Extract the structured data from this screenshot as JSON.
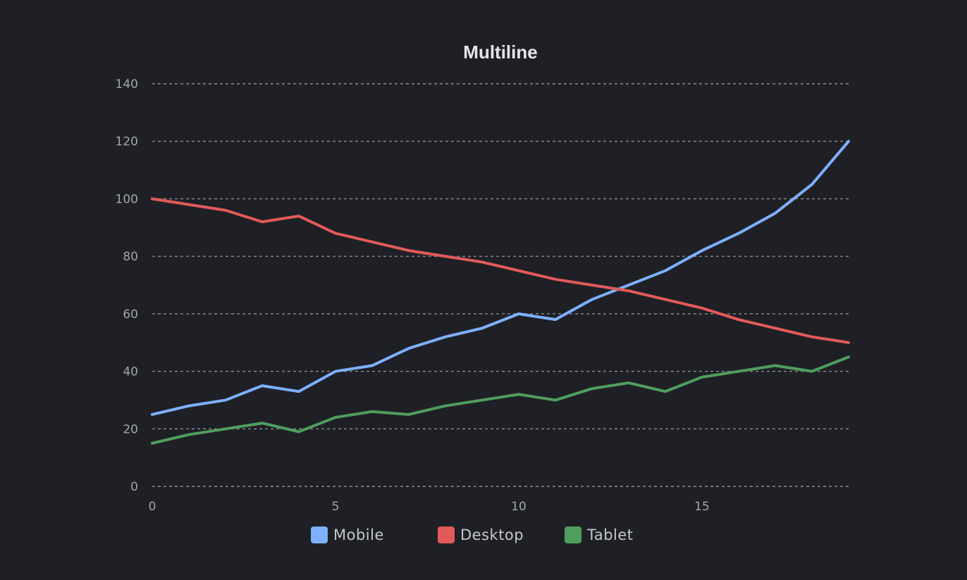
{
  "chart_data": {
    "type": "line",
    "title": "Multiline",
    "xlabel": "",
    "ylabel": "",
    "x": [
      0,
      1,
      2,
      3,
      4,
      5,
      6,
      7,
      8,
      9,
      10,
      11,
      12,
      13,
      14,
      15,
      16,
      17,
      18,
      19
    ],
    "xlim": [
      0,
      19
    ],
    "ylim": [
      0,
      140
    ],
    "xticks": [
      0,
      5,
      10,
      15
    ],
    "yticks": [
      0,
      20,
      40,
      60,
      80,
      100,
      120,
      140
    ],
    "grid": "horizontal-dashed",
    "legend_position": "bottom",
    "series": [
      {
        "name": "Mobile",
        "color": "#7eb0ff",
        "values": [
          25,
          28,
          30,
          35,
          33,
          40,
          42,
          48,
          52,
          55,
          60,
          58,
          65,
          70,
          75,
          82,
          88,
          95,
          105,
          120
        ]
      },
      {
        "name": "Desktop",
        "color": "#e35a5a",
        "values": [
          100,
          98,
          96,
          92,
          94,
          88,
          85,
          82,
          80,
          78,
          75,
          72,
          70,
          68,
          65,
          62,
          58,
          55,
          52,
          50
        ]
      },
      {
        "name": "Tablet",
        "color": "#4f9e5e",
        "values": [
          15,
          18,
          20,
          22,
          19,
          24,
          26,
          25,
          28,
          30,
          32,
          30,
          34,
          36,
          33,
          38,
          40,
          42,
          40,
          45
        ]
      }
    ]
  }
}
